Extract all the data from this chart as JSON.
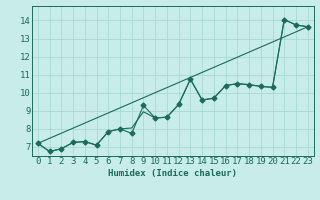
{
  "title": "",
  "xlabel": "Humidex (Indice chaleur)",
  "background_color": "#c8ece9",
  "grid_color": "#a8d8d4",
  "line_color": "#1a6b5a",
  "xlim": [
    -0.5,
    23.5
  ],
  "ylim": [
    6.5,
    14.8
  ],
  "xticks": [
    0,
    1,
    2,
    3,
    4,
    5,
    6,
    7,
    8,
    9,
    10,
    11,
    12,
    13,
    14,
    15,
    16,
    17,
    18,
    19,
    20,
    21,
    22,
    23
  ],
  "yticks": [
    7,
    8,
    9,
    10,
    11,
    12,
    13,
    14
  ],
  "line1_x": [
    0,
    1,
    2,
    3,
    4,
    5,
    6,
    7,
    8,
    9,
    10,
    11,
    12,
    13,
    14,
    15,
    16,
    17,
    18,
    19,
    20,
    21,
    22,
    23
  ],
  "line1_y": [
    7.2,
    6.75,
    6.9,
    7.25,
    7.3,
    7.1,
    7.85,
    8.0,
    7.75,
    9.3,
    8.6,
    8.65,
    9.35,
    10.75,
    9.6,
    9.7,
    10.4,
    10.5,
    10.45,
    10.35,
    10.3,
    14.05,
    13.75,
    13.65
  ],
  "line2_x": [
    0,
    1,
    2,
    3,
    4,
    5,
    6,
    7,
    8,
    9,
    10,
    11,
    12,
    13,
    14,
    15,
    16,
    17,
    18,
    19,
    20,
    21,
    22,
    23
  ],
  "line2_y": [
    7.2,
    6.75,
    6.9,
    7.25,
    7.3,
    7.1,
    7.85,
    8.0,
    8.05,
    8.95,
    8.6,
    8.65,
    9.35,
    10.75,
    9.6,
    9.7,
    10.4,
    10.5,
    10.45,
    10.35,
    10.3,
    14.05,
    13.75,
    13.65
  ],
  "line3_x": [
    0,
    23
  ],
  "line3_y": [
    7.2,
    13.65
  ],
  "marker_style": "D",
  "marker_size": 2.5,
  "line_width": 0.8,
  "font_size": 6.5
}
